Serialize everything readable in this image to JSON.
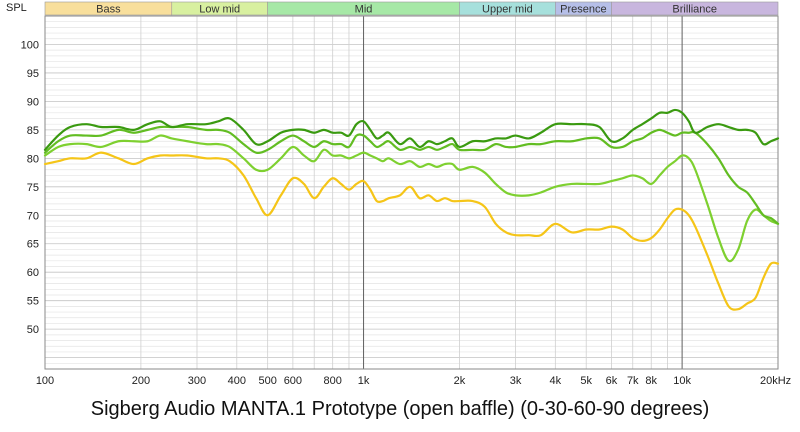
{
  "chart_data": {
    "type": "line",
    "title": "Sigberg Audio MANTA.1 Prototype (open baffle) (0-30-60-90 degrees)",
    "ylabel": "SPL",
    "xlabel": "",
    "x_scale": "log",
    "xlim": [
      100,
      20000
    ],
    "ylim": [
      43,
      105
    ],
    "grid": true,
    "y_ticks": [
      50,
      55,
      60,
      65,
      70,
      75,
      80,
      85,
      90,
      95,
      100
    ],
    "x_ticks": [
      {
        "v": 100,
        "label": "100"
      },
      {
        "v": 200,
        "label": "200"
      },
      {
        "v": 300,
        "label": "300"
      },
      {
        "v": 400,
        "label": "400"
      },
      {
        "v": 500,
        "label": "500"
      },
      {
        "v": 600,
        "label": "600"
      },
      {
        "v": 800,
        "label": "800"
      },
      {
        "v": 1000,
        "label": "1k"
      },
      {
        "v": 2000,
        "label": "2k"
      },
      {
        "v": 3000,
        "label": "3k"
      },
      {
        "v": 4000,
        "label": "4k"
      },
      {
        "v": 5000,
        "label": "5k"
      },
      {
        "v": 6000,
        "label": "6k"
      },
      {
        "v": 7000,
        "label": "7k"
      },
      {
        "v": 8000,
        "label": "8k"
      },
      {
        "v": 10000,
        "label": "10k"
      },
      {
        "v": 20000,
        "label": "20kHz"
      }
    ],
    "bands": [
      {
        "label": "Bass",
        "from": 100,
        "to": 250,
        "color": "#f8df9c"
      },
      {
        "label": "Low mid",
        "from": 250,
        "to": 500,
        "color": "#d8f0a0"
      },
      {
        "label": "Mid",
        "from": 500,
        "to": 2000,
        "color": "#a6e8a6"
      },
      {
        "label": "Upper mid",
        "from": 2000,
        "to": 4000,
        "color": "#a6e0dc"
      },
      {
        "label": "Presence",
        "from": 4000,
        "to": 6000,
        "color": "#b6bfe8"
      },
      {
        "label": "Brilliance",
        "from": 6000,
        "to": 20000,
        "color": "#c8b6de"
      }
    ],
    "series": [
      {
        "color": "#3a9a10",
        "x": [
          100,
          110,
          120,
          135,
          150,
          170,
          190,
          210,
          230,
          250,
          280,
          320,
          350,
          380,
          420,
          460,
          500,
          550,
          600,
          650,
          700,
          750,
          800,
          850,
          900,
          950,
          1000,
          1050,
          1100,
          1150,
          1200,
          1300,
          1400,
          1500,
          1600,
          1700,
          1800,
          1900,
          2000,
          2200,
          2400,
          2600,
          2800,
          3000,
          3300,
          3600,
          4000,
          4500,
          5000,
          5500,
          6000,
          6500,
          7000,
          7500,
          8000,
          8500,
          9000,
          9500,
          10000,
          10500,
          11000,
          12000,
          13000,
          14000,
          15000,
          16000,
          17000,
          18000,
          19000,
          20000
        ],
        "y": [
          81.5,
          84,
          85.5,
          86,
          85.5,
          85.5,
          85,
          86,
          86.5,
          85.5,
          86,
          86,
          86.5,
          87,
          85,
          82.5,
          83,
          84.5,
          85,
          85,
          84.5,
          85,
          84.5,
          84.5,
          84,
          86,
          86.5,
          85,
          83.5,
          84,
          84.5,
          82.5,
          83.5,
          82,
          83,
          82.5,
          83,
          83.5,
          82,
          83,
          83,
          83.5,
          83.5,
          84,
          83.5,
          84.5,
          86,
          86,
          86,
          85.5,
          83,
          83.5,
          85,
          86,
          87,
          88,
          88,
          88.5,
          88,
          86.5,
          84.5,
          85.5,
          86,
          85.5,
          85,
          85,
          84.5,
          82.5,
          83,
          83.5
        ]
      },
      {
        "color": "#62bd22",
        "x": [
          100,
          110,
          120,
          135,
          150,
          170,
          190,
          210,
          230,
          250,
          280,
          320,
          350,
          380,
          420,
          460,
          500,
          550,
          600,
          650,
          700,
          750,
          800,
          850,
          900,
          950,
          1000,
          1050,
          1100,
          1150,
          1200,
          1300,
          1400,
          1500,
          1600,
          1700,
          1800,
          1900,
          2000,
          2200,
          2400,
          2600,
          2800,
          3000,
          3300,
          3600,
          4000,
          4500,
          5000,
          5500,
          6000,
          6500,
          7000,
          7500,
          8000,
          8500,
          9000,
          9500,
          10000,
          10500,
          11000,
          12000,
          13000,
          14000,
          15000,
          16000,
          17000,
          18000,
          19000,
          20000
        ],
        "y": [
          81,
          83,
          84,
          84,
          84,
          85,
          84.5,
          85,
          85.5,
          85.5,
          85.5,
          85,
          85,
          84.5,
          82.5,
          81,
          81.5,
          83,
          84,
          83,
          82,
          83,
          82.5,
          82.5,
          82,
          84,
          84,
          83,
          82,
          82.5,
          83,
          81.5,
          82,
          81.5,
          82,
          81.5,
          82,
          82.5,
          81.5,
          81.5,
          81.5,
          82.5,
          82,
          82,
          82.5,
          82.5,
          83,
          83,
          83.5,
          83.5,
          82,
          82,
          83,
          83.5,
          84.5,
          85,
          84.5,
          84,
          84.5,
          84.5,
          84.5,
          82.5,
          80,
          77,
          75,
          74,
          72,
          70,
          69.5,
          68.5
        ]
      },
      {
        "color": "#7ed030",
        "x": [
          100,
          110,
          120,
          135,
          150,
          170,
          190,
          210,
          230,
          250,
          280,
          320,
          350,
          380,
          420,
          460,
          500,
          550,
          600,
          650,
          700,
          750,
          800,
          850,
          900,
          950,
          1000,
          1050,
          1100,
          1150,
          1200,
          1300,
          1400,
          1500,
          1600,
          1700,
          1800,
          1900,
          2000,
          2200,
          2400,
          2600,
          2800,
          3000,
          3300,
          3600,
          4000,
          4500,
          5000,
          5500,
          6000,
          6500,
          7000,
          7500,
          8000,
          8500,
          9000,
          9500,
          10000,
          10500,
          11000,
          12000,
          13000,
          14000,
          15000,
          16000,
          17000,
          18000,
          19000,
          20000
        ],
        "y": [
          80.5,
          82,
          82.5,
          82.5,
          82,
          83,
          83,
          83,
          84,
          83.5,
          83,
          82.5,
          82.5,
          82,
          80,
          78,
          78,
          80,
          82,
          80.5,
          79.5,
          81.5,
          80.5,
          80.5,
          80,
          80.5,
          81,
          80.5,
          80,
          79.5,
          80,
          79,
          79.5,
          78.5,
          79,
          78.5,
          79,
          79,
          78,
          78.5,
          77.5,
          75.5,
          74,
          73.5,
          73.5,
          74,
          75,
          75.5,
          75.5,
          75.5,
          76,
          76.5,
          77,
          76.5,
          75.5,
          77,
          78.5,
          79.5,
          80.5,
          80,
          78,
          72,
          66,
          62,
          64,
          69,
          71,
          70,
          69,
          68.5
        ]
      },
      {
        "color": "#f5c518",
        "x": [
          100,
          110,
          120,
          135,
          150,
          170,
          190,
          210,
          230,
          250,
          280,
          320,
          350,
          380,
          420,
          460,
          500,
          550,
          600,
          650,
          700,
          750,
          800,
          850,
          900,
          950,
          1000,
          1050,
          1100,
          1150,
          1200,
          1300,
          1400,
          1500,
          1600,
          1700,
          1800,
          1900,
          2000,
          2200,
          2400,
          2600,
          2800,
          3000,
          3300,
          3600,
          4000,
          4500,
          5000,
          5500,
          6000,
          6500,
          7000,
          7500,
          8000,
          8500,
          9000,
          9500,
          10000,
          10500,
          11000,
          12000,
          13000,
          14000,
          15000,
          16000,
          17000,
          18000,
          19000,
          20000
        ],
        "y": [
          79,
          79.5,
          80,
          80,
          81,
          80,
          79,
          80,
          80.5,
          80.5,
          80.5,
          80,
          80,
          79.5,
          77,
          73,
          70,
          73.5,
          76.5,
          75.5,
          73,
          75,
          76.5,
          75.5,
          74.5,
          75.5,
          76,
          74.5,
          72.5,
          72.5,
          73,
          73.5,
          75,
          73,
          73.5,
          72.5,
          73,
          72.5,
          72.5,
          72.5,
          71.5,
          68.5,
          67,
          66.5,
          66.5,
          66.5,
          68.5,
          67,
          67.5,
          67.5,
          68,
          67.5,
          66,
          65.5,
          66,
          67.5,
          69.5,
          71,
          71,
          70,
          68,
          63,
          58,
          54,
          53.5,
          54.5,
          55.5,
          59,
          61.5,
          61.5
        ]
      }
    ]
  }
}
